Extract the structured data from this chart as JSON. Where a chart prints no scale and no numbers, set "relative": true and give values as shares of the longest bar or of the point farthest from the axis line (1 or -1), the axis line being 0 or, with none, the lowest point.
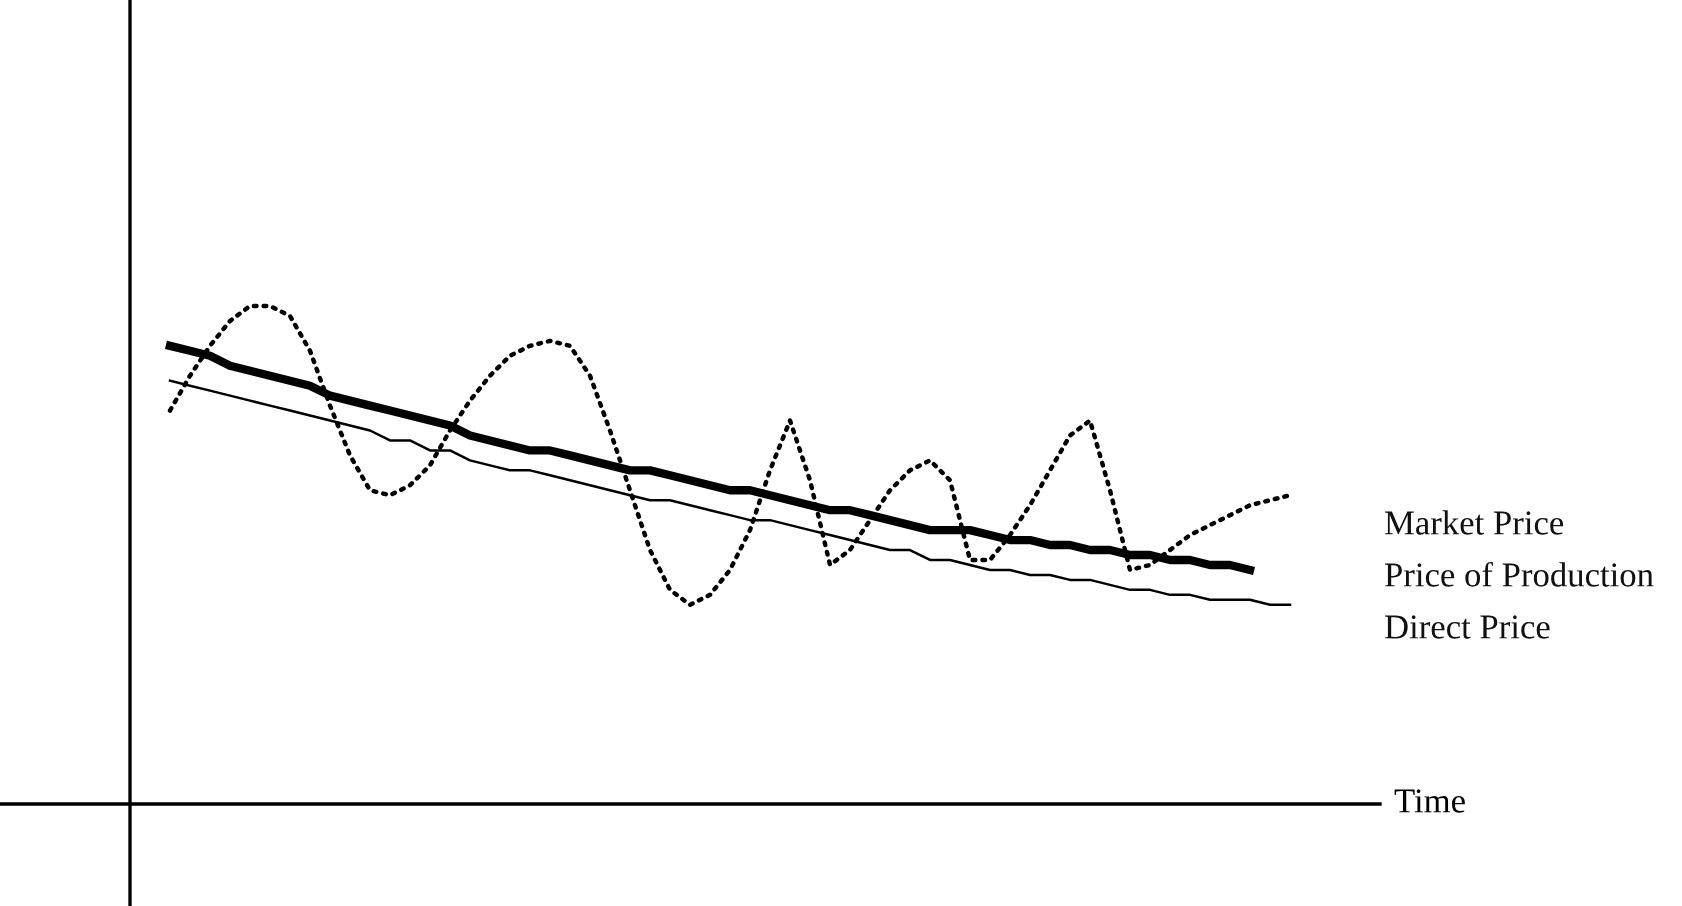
{
  "chart_data": {
    "type": "line",
    "relative": true,
    "xlabel": "Time",
    "marker": "none",
    "categories": [
      null,
      null,
      null,
      null,
      null,
      null,
      null,
      null,
      null,
      null,
      null,
      null,
      null,
      null,
      null,
      null,
      null,
      null,
      null,
      null,
      null,
      null,
      null,
      null,
      null,
      null,
      null,
      null,
      null,
      null,
      null,
      null,
      null,
      null,
      null,
      null,
      null,
      null,
      null,
      null,
      null,
      null,
      null,
      null,
      null,
      null,
      null,
      null,
      null,
      null,
      null,
      null,
      null,
      null,
      null,
      null,
      null
    ],
    "series": [
      {
        "name": "Market Price",
        "color": "#000000",
        "line_style": "dotted",
        "values": [
          0.79,
          0.86,
          0.92,
          0.97,
          1.0,
          1.0,
          0.98,
          0.91,
          0.8,
          0.7,
          0.63,
          0.62,
          0.64,
          0.68,
          0.75,
          0.81,
          0.86,
          0.9,
          0.92,
          0.93,
          0.92,
          0.86,
          0.75,
          0.63,
          0.51,
          0.43,
          0.4,
          0.42,
          0.47,
          0.55,
          0.67,
          0.77,
          0.65,
          0.48,
          0.51,
          0.57,
          0.63,
          0.67,
          0.69,
          0.65,
          0.49,
          0.49,
          0.54,
          0.6,
          0.67,
          0.74,
          0.77,
          0.63,
          0.47,
          0.48,
          0.51,
          0.54,
          0.56,
          0.58,
          0.6,
          0.61,
          0.62
        ]
      },
      {
        "name": "Price of Production",
        "color": "#000000",
        "line_style": "solid",
        "values": [
          0.92,
          0.91,
          0.9,
          0.88,
          0.87,
          0.86,
          0.85,
          0.84,
          0.82,
          0.81,
          0.8,
          0.79,
          0.78,
          0.77,
          0.76,
          0.74,
          0.73,
          0.72,
          0.71,
          0.71,
          0.7,
          0.69,
          0.68,
          0.67,
          0.67,
          0.66,
          0.65,
          0.64,
          0.63,
          0.63,
          0.62,
          0.61,
          0.6,
          0.59,
          0.59,
          0.58,
          0.57,
          0.56,
          0.55,
          0.55,
          0.55,
          0.54,
          0.53,
          0.53,
          0.52,
          0.52,
          0.51,
          0.51,
          0.5,
          0.5,
          0.49,
          0.49,
          0.48,
          0.48,
          0.47,
          null,
          null
        ]
      },
      {
        "name": "Direct Price",
        "color": "#000000",
        "line_style": "solid",
        "values": [
          0.85,
          0.84,
          0.83,
          0.82,
          0.81,
          0.8,
          0.79,
          0.78,
          0.77,
          0.76,
          0.75,
          0.73,
          0.73,
          0.71,
          0.71,
          0.69,
          0.68,
          0.67,
          0.67,
          0.66,
          0.65,
          0.64,
          0.63,
          0.62,
          0.61,
          0.61,
          0.6,
          0.59,
          0.58,
          0.57,
          0.57,
          0.56,
          0.55,
          0.54,
          0.53,
          0.52,
          0.51,
          0.51,
          0.49,
          0.49,
          0.48,
          0.47,
          0.47,
          0.46,
          0.46,
          0.45,
          0.45,
          0.44,
          0.43,
          0.43,
          0.42,
          0.42,
          0.41,
          0.41,
          0.41,
          0.4,
          0.4
        ]
      }
    ]
  }
}
